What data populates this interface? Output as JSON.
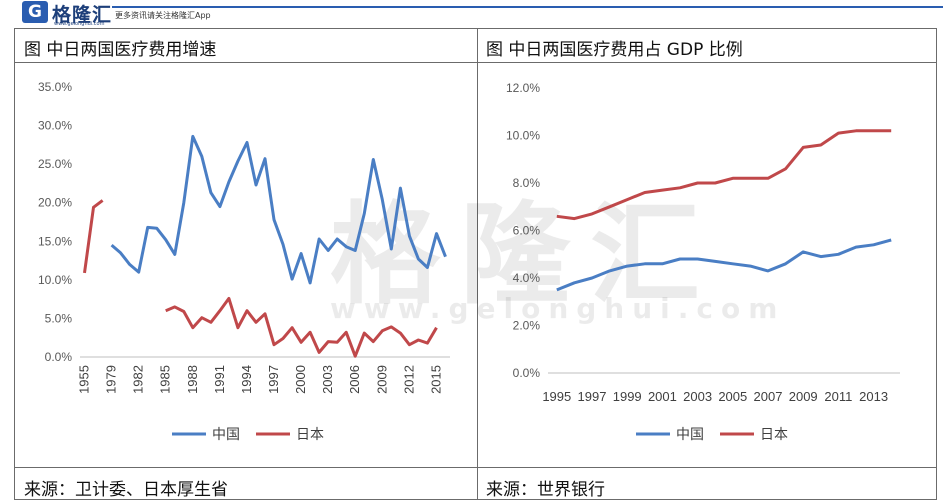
{
  "header": {
    "logo_mark": "G",
    "logo_name": "格隆汇",
    "logo_url": "www.gelonghui.com",
    "tagline": "更多资讯请关注格隆汇App"
  },
  "watermark": {
    "text": "格隆汇",
    "url": "www.gelonghui.com"
  },
  "colors": {
    "china": "#4a7ec4",
    "japan": "#c0484a",
    "axis": "#bfbfbf"
  },
  "left_panel": {
    "title": "图  中日两国医疗费用增速",
    "source": "来源：卫计委、日本厚生省"
  },
  "right_panel": {
    "title": "图  中日两国医疗费用占 GDP 比例",
    "source": "来源：世界银行"
  },
  "chart_data": [
    {
      "type": "line",
      "title": "图  中日两国医疗费用增速",
      "x": [
        "1955",
        "1956",
        "1957",
        "1979",
        "1980",
        "1981",
        "1982",
        "1983",
        "1984",
        "1985",
        "1986",
        "1987",
        "1988",
        "1989",
        "1990",
        "1991",
        "1992",
        "1993",
        "1994",
        "1995",
        "1996",
        "1997",
        "1998",
        "1999",
        "2000",
        "2001",
        "2002",
        "2003",
        "2004",
        "2005",
        "2006",
        "2007",
        "2008",
        "2009",
        "2010",
        "2011",
        "2012",
        "2013",
        "2014",
        "2015",
        "2016"
      ],
      "tick_labels": [
        "1955",
        "1979",
        "1982",
        "1985",
        "1988",
        "1991",
        "1994",
        "1997",
        "2000",
        "2003",
        "2006",
        "2009",
        "2012",
        "2015"
      ],
      "yticks": [
        "0.0%",
        "5.0%",
        "10.0%",
        "15.0%",
        "20.0%",
        "25.0%",
        "30.0%",
        "35.0%"
      ],
      "ylim": [
        0,
        35
      ],
      "series": [
        {
          "name": "中国",
          "values": [
            null,
            null,
            null,
            14.5,
            13.5,
            12.0,
            11.0,
            16.8,
            16.7,
            15.2,
            13.3,
            20.0,
            28.6,
            26.0,
            21.3,
            19.5,
            22.7,
            25.4,
            27.8,
            22.3,
            25.7,
            17.8,
            14.6,
            10.1,
            13.4,
            9.6,
            15.3,
            13.8,
            15.3,
            14.3,
            13.8,
            18.6,
            25.6,
            20.4,
            14.0,
            21.9,
            15.7,
            12.7,
            11.6,
            16.0,
            13.0
          ]
        },
        {
          "name": "日本",
          "values": [
            10.9,
            19.4,
            20.3,
            null,
            null,
            null,
            null,
            null,
            null,
            6.0,
            6.5,
            5.9,
            3.8,
            5.1,
            4.5,
            6.0,
            7.6,
            3.8,
            6.0,
            4.5,
            5.6,
            1.6,
            2.4,
            3.8,
            1.9,
            3.2,
            0.6,
            2.0,
            1.9,
            3.2,
            0.1,
            3.1,
            2.0,
            3.4,
            3.9,
            3.1,
            1.6,
            2.2,
            1.8,
            3.8,
            null
          ]
        }
      ]
    },
    {
      "type": "line",
      "title": "图  中日两国医疗费用占 GDP 比例",
      "x": [
        "1995",
        "1996",
        "1997",
        "1998",
        "1999",
        "2000",
        "2001",
        "2002",
        "2003",
        "2004",
        "2005",
        "2006",
        "2007",
        "2008",
        "2009",
        "2010",
        "2011",
        "2012",
        "2013",
        "2014"
      ],
      "tick_labels": [
        "1995",
        "1997",
        "1999",
        "2001",
        "2003",
        "2005",
        "2007",
        "2009",
        "2011",
        "2013"
      ],
      "yticks": [
        "0.0%",
        "2.0%",
        "4.0%",
        "6.0%",
        "8.0%",
        "10.0%",
        "12.0%"
      ],
      "ylim": [
        0,
        12
      ],
      "series": [
        {
          "name": "中国",
          "values": [
            3.5,
            3.8,
            4.0,
            4.3,
            4.5,
            4.6,
            4.6,
            4.8,
            4.8,
            4.7,
            4.6,
            4.5,
            4.3,
            4.6,
            5.1,
            4.9,
            5.0,
            5.3,
            5.4,
            5.6
          ]
        },
        {
          "name": "日本",
          "values": [
            6.6,
            6.5,
            6.7,
            7.0,
            7.3,
            7.6,
            7.7,
            7.8,
            8.0,
            8.0,
            8.2,
            8.2,
            8.2,
            8.6,
            9.5,
            9.6,
            10.1,
            10.2,
            10.2,
            10.2
          ]
        }
      ]
    }
  ]
}
